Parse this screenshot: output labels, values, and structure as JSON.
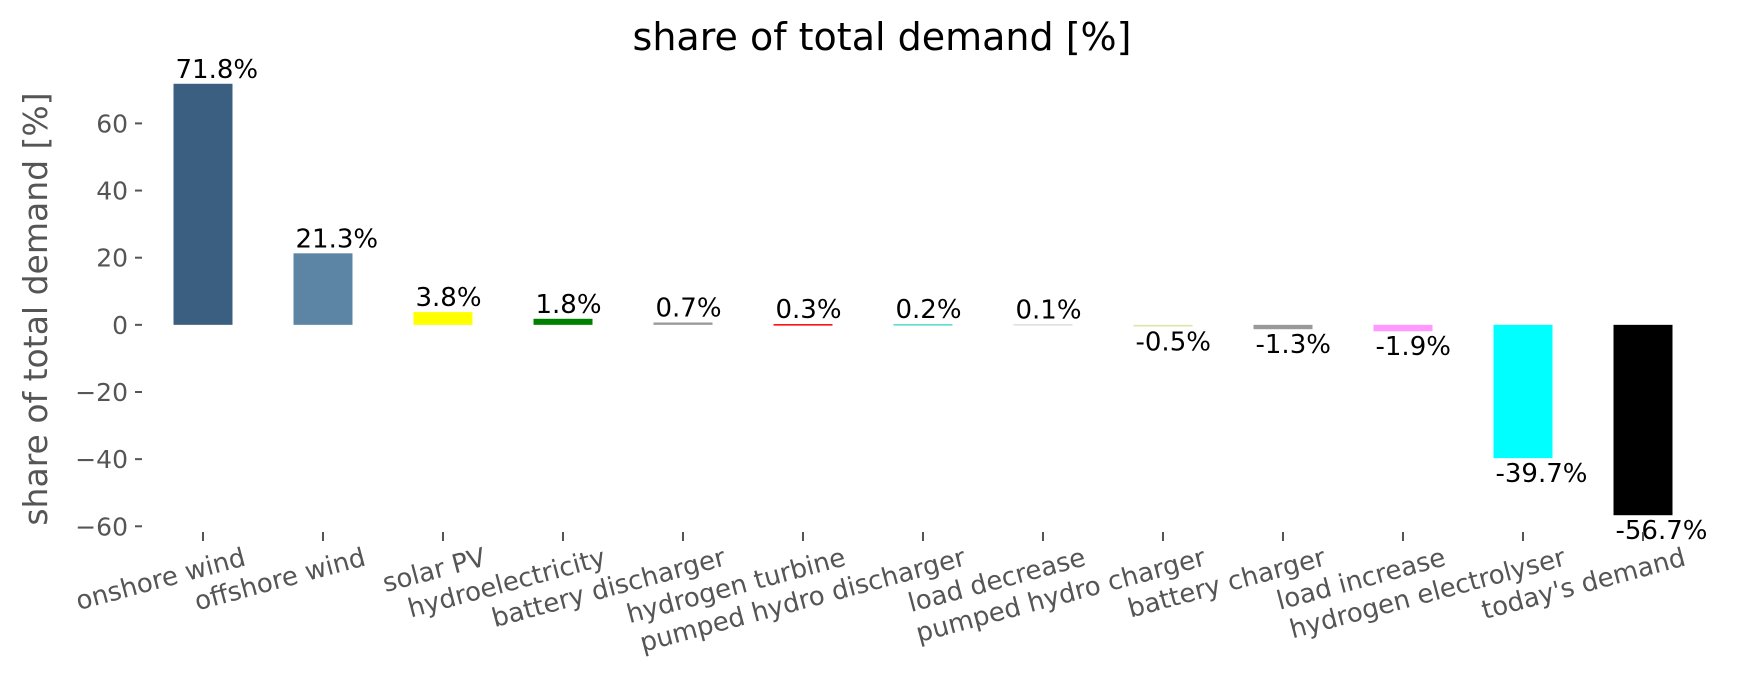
{
  "chart_data": {
    "type": "bar",
    "title": "share of total demand [%]",
    "xlabel": "",
    "ylabel": "share of total demand [%]",
    "ylim": [
      -61.7,
      76.2
    ],
    "yticks": [
      60,
      40,
      20,
      0,
      -20,
      -40,
      -60
    ],
    "ytick_labels": [
      "60",
      "40",
      "20",
      "0",
      "−20",
      "−40",
      "−60"
    ],
    "grid": false,
    "legend": "none",
    "categories": [
      "onshore wind",
      "offshore wind",
      "solar PV",
      "hydroelectricity",
      "battery discharger",
      "hydrogen turbine",
      "pumped hydro discharger",
      "load decrease",
      "pumped hydro charger",
      "battery charger",
      "load increase",
      "hydrogen electrolyser",
      "today's demand"
    ],
    "values": [
      71.8,
      21.3,
      3.8,
      1.8,
      0.7,
      0.3,
      0.2,
      0.1,
      -0.5,
      -1.3,
      -1.9,
      -39.7,
      -56.7
    ],
    "data_labels": [
      "71.8%",
      "21.3%",
      "3.8%",
      "1.8%",
      "0.7%",
      "0.3%",
      "0.2%",
      "0.1%",
      "-0.5%",
      "-1.3%",
      "-1.9%",
      "-39.7%",
      "-56.7%"
    ],
    "colors": [
      "#3b5f80",
      "#5b84a5",
      "#ffff00",
      "#008000",
      "#999999",
      "#ff0000",
      "#51dbcc",
      "#dddddd",
      "#dde5a8",
      "#999999",
      "#ff99ff",
      "#00ffff",
      "#000000"
    ]
  }
}
